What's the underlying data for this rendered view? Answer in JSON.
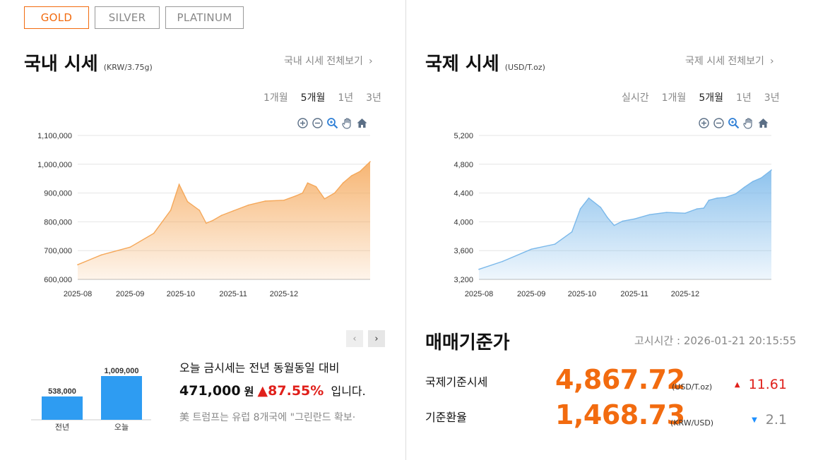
{
  "tabs": {
    "gold": "GOLD",
    "silver": "SILVER",
    "platinum": "PLATINUM"
  },
  "domestic": {
    "title": "국내 시세",
    "unit": "(KRW/3.75g)",
    "view_all": "국내 시세 전체보기",
    "periods": [
      "1개월",
      "5개월",
      "1년",
      "3년"
    ]
  },
  "international": {
    "title": "국제 시세",
    "unit": "(USD/T.oz)",
    "view_all": "국제 시세 전체보기",
    "periods": [
      "실시간",
      "1개월",
      "5개월",
      "1년",
      "3년"
    ]
  },
  "chart_data": [
    {
      "type": "area",
      "color": "#f5a85a",
      "x": [
        "2025-08-01",
        "2025-08-15",
        "2025-09-01",
        "2025-09-15",
        "2025-09-25",
        "2025-09-30",
        "2025-10-05",
        "2025-10-12",
        "2025-10-16",
        "2025-10-20",
        "2025-10-25",
        "2025-11-01",
        "2025-11-10",
        "2025-11-20",
        "2025-12-01",
        "2025-12-08",
        "2025-12-12",
        "2025-12-15",
        "2025-12-20",
        "2025-12-25",
        "2025-12-31",
        "2026-01-05",
        "2026-01-10",
        "2026-01-15",
        "2026-01-21"
      ],
      "values": [
        651000,
        685000,
        712000,
        760000,
        840000,
        930000,
        870000,
        840000,
        795000,
        805000,
        822000,
        838000,
        858000,
        872000,
        875000,
        890000,
        900000,
        935000,
        922000,
        880000,
        900000,
        935000,
        960000,
        975000,
        1009000
      ],
      "xticks": [
        "2025-08",
        "2025-09",
        "2025-10",
        "2025-11",
        "2025-12"
      ],
      "yticks": [
        "600,000",
        "700,000",
        "800,000",
        "900,000",
        "1,000,000",
        "1,100,000"
      ],
      "ylim": [
        600000,
        1100000
      ]
    },
    {
      "type": "area",
      "color": "#7ab8ea",
      "x": [
        "2025-08-01",
        "2025-08-15",
        "2025-09-01",
        "2025-09-15",
        "2025-09-25",
        "2025-09-30",
        "2025-10-05",
        "2025-10-12",
        "2025-10-16",
        "2025-10-20",
        "2025-10-25",
        "2025-11-01",
        "2025-11-10",
        "2025-11-20",
        "2025-12-01",
        "2025-12-08",
        "2025-12-12",
        "2025-12-15",
        "2025-12-20",
        "2025-12-25",
        "2025-12-31",
        "2026-01-05",
        "2026-01-10",
        "2026-01-15",
        "2026-01-21"
      ],
      "values": [
        3340,
        3450,
        3620,
        3690,
        3860,
        4180,
        4330,
        4200,
        4060,
        3950,
        4010,
        4040,
        4100,
        4130,
        4120,
        4180,
        4190,
        4300,
        4330,
        4340,
        4390,
        4480,
        4560,
        4610,
        4720
      ],
      "xticks": [
        "2025-08",
        "2025-09",
        "2025-10",
        "2025-11",
        "2025-12"
      ],
      "yticks": [
        "3,200",
        "3,600",
        "4,000",
        "4,400",
        "4,800",
        "5,200"
      ],
      "ylim": [
        3200,
        5200
      ]
    },
    {
      "type": "bar",
      "categories": [
        "전년",
        "오늘"
      ],
      "values": [
        538000,
        1009000
      ],
      "labels": [
        "538,000",
        "1,009,000"
      ],
      "color": "#2e9cf2"
    }
  ],
  "news": {
    "line1": "오늘 금시세는 전년 동월동일 대비",
    "amount": "471,000",
    "won": "원",
    "arrow": "▲",
    "percent": "87.55%",
    "suffix": "입니다.",
    "headline": "美 트럼프는 유럽 8개국에 \"그린란드 확보·"
  },
  "reference": {
    "title": "매매기준가",
    "notice_label": "고시시간 :",
    "notice_time": "2026-01-21 20:15:55",
    "rows": [
      {
        "label": "국제기준시세",
        "value": "4,867.72",
        "unit": "(USD/T.oz)",
        "arrow": "▲",
        "change": "11.61",
        "dir": "up"
      },
      {
        "label": "기준환율",
        "value": "1,468.73",
        "unit": "(KRW/USD)",
        "arrow": "▼",
        "change": "2.1",
        "dir": "down"
      }
    ]
  },
  "icons": [
    "zoom-in-icon",
    "zoom-out-icon",
    "magnify-icon",
    "pan-hand-icon",
    "home-icon"
  ]
}
